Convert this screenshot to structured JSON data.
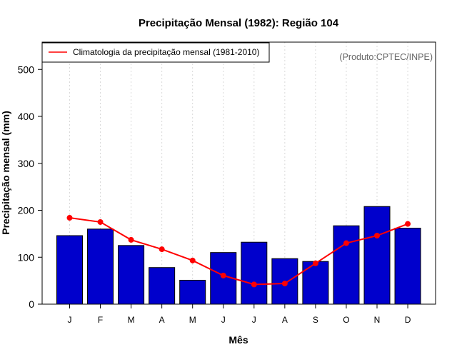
{
  "chart_data": {
    "type": "bar",
    "title": "Precipitação Mensal (1982): Região 104",
    "xlabel": "Mês",
    "ylabel": "Precipitação mensal (mm)",
    "categories": [
      "J",
      "F",
      "M",
      "A",
      "M",
      "J",
      "J",
      "A",
      "S",
      "O",
      "N",
      "D"
    ],
    "series": [
      {
        "name": "Precipitação mensal (1982)",
        "type": "bar",
        "values": [
          146,
          160,
          125,
          78,
          51,
          110,
          132,
          97,
          91,
          167,
          208,
          162
        ]
      },
      {
        "name": "Climatologia da precipitação mensal (1981-2010)",
        "type": "line",
        "values": [
          184,
          175,
          137,
          117,
          93,
          61,
          42,
          44,
          87,
          130,
          146,
          171
        ]
      }
    ],
    "ylim": [
      0,
      560
    ],
    "yticks": [
      0,
      100,
      200,
      300,
      400,
      500
    ],
    "grid": "vertical dotted",
    "legend": {
      "position": "top-left",
      "entries": [
        "Climatologia da precipitação mensal (1981-2010)"
      ]
    },
    "credit": "(Produto:CPTEC/INPE)",
    "colors": {
      "bar_fill": "#0000cc",
      "bar_stroke": "#000000",
      "line": "#ff0000",
      "grid": "#d9d9d9"
    }
  }
}
